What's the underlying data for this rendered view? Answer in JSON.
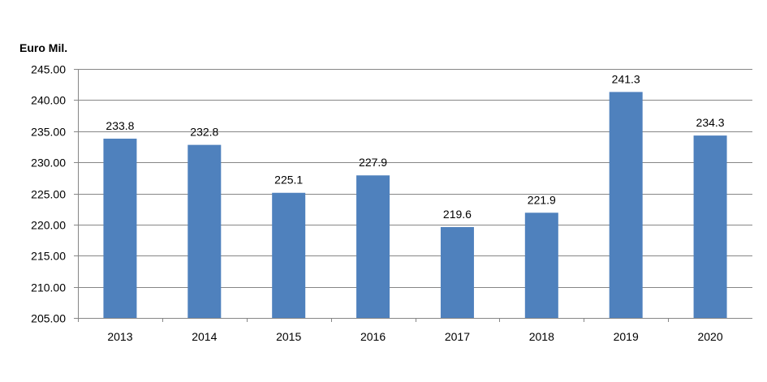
{
  "chart_data": {
    "type": "bar",
    "title": "",
    "xlabel": "",
    "ylabel": "Euro Mil.",
    "categories": [
      "2013",
      "2014",
      "2015",
      "2016",
      "2017",
      "2018",
      "2019",
      "2020"
    ],
    "values": [
      233.8,
      232.8,
      225.1,
      227.9,
      219.6,
      221.9,
      241.3,
      234.3
    ],
    "data_labels": [
      "233.8",
      "232.8",
      "225.1",
      "227.9",
      "219.6",
      "221.9",
      "241.3",
      "234.3"
    ],
    "ylim": [
      205,
      245
    ],
    "yticks": [
      205,
      210,
      215,
      220,
      225,
      230,
      235,
      240,
      245
    ],
    "ytick_labels": [
      "205.00",
      "210.00",
      "215.00",
      "220.00",
      "225.00",
      "230.00",
      "235.00",
      "240.00",
      "245.00"
    ],
    "grid": true,
    "legend": "none",
    "bar_color": "#4F81BD",
    "grid_color": "#868686"
  }
}
